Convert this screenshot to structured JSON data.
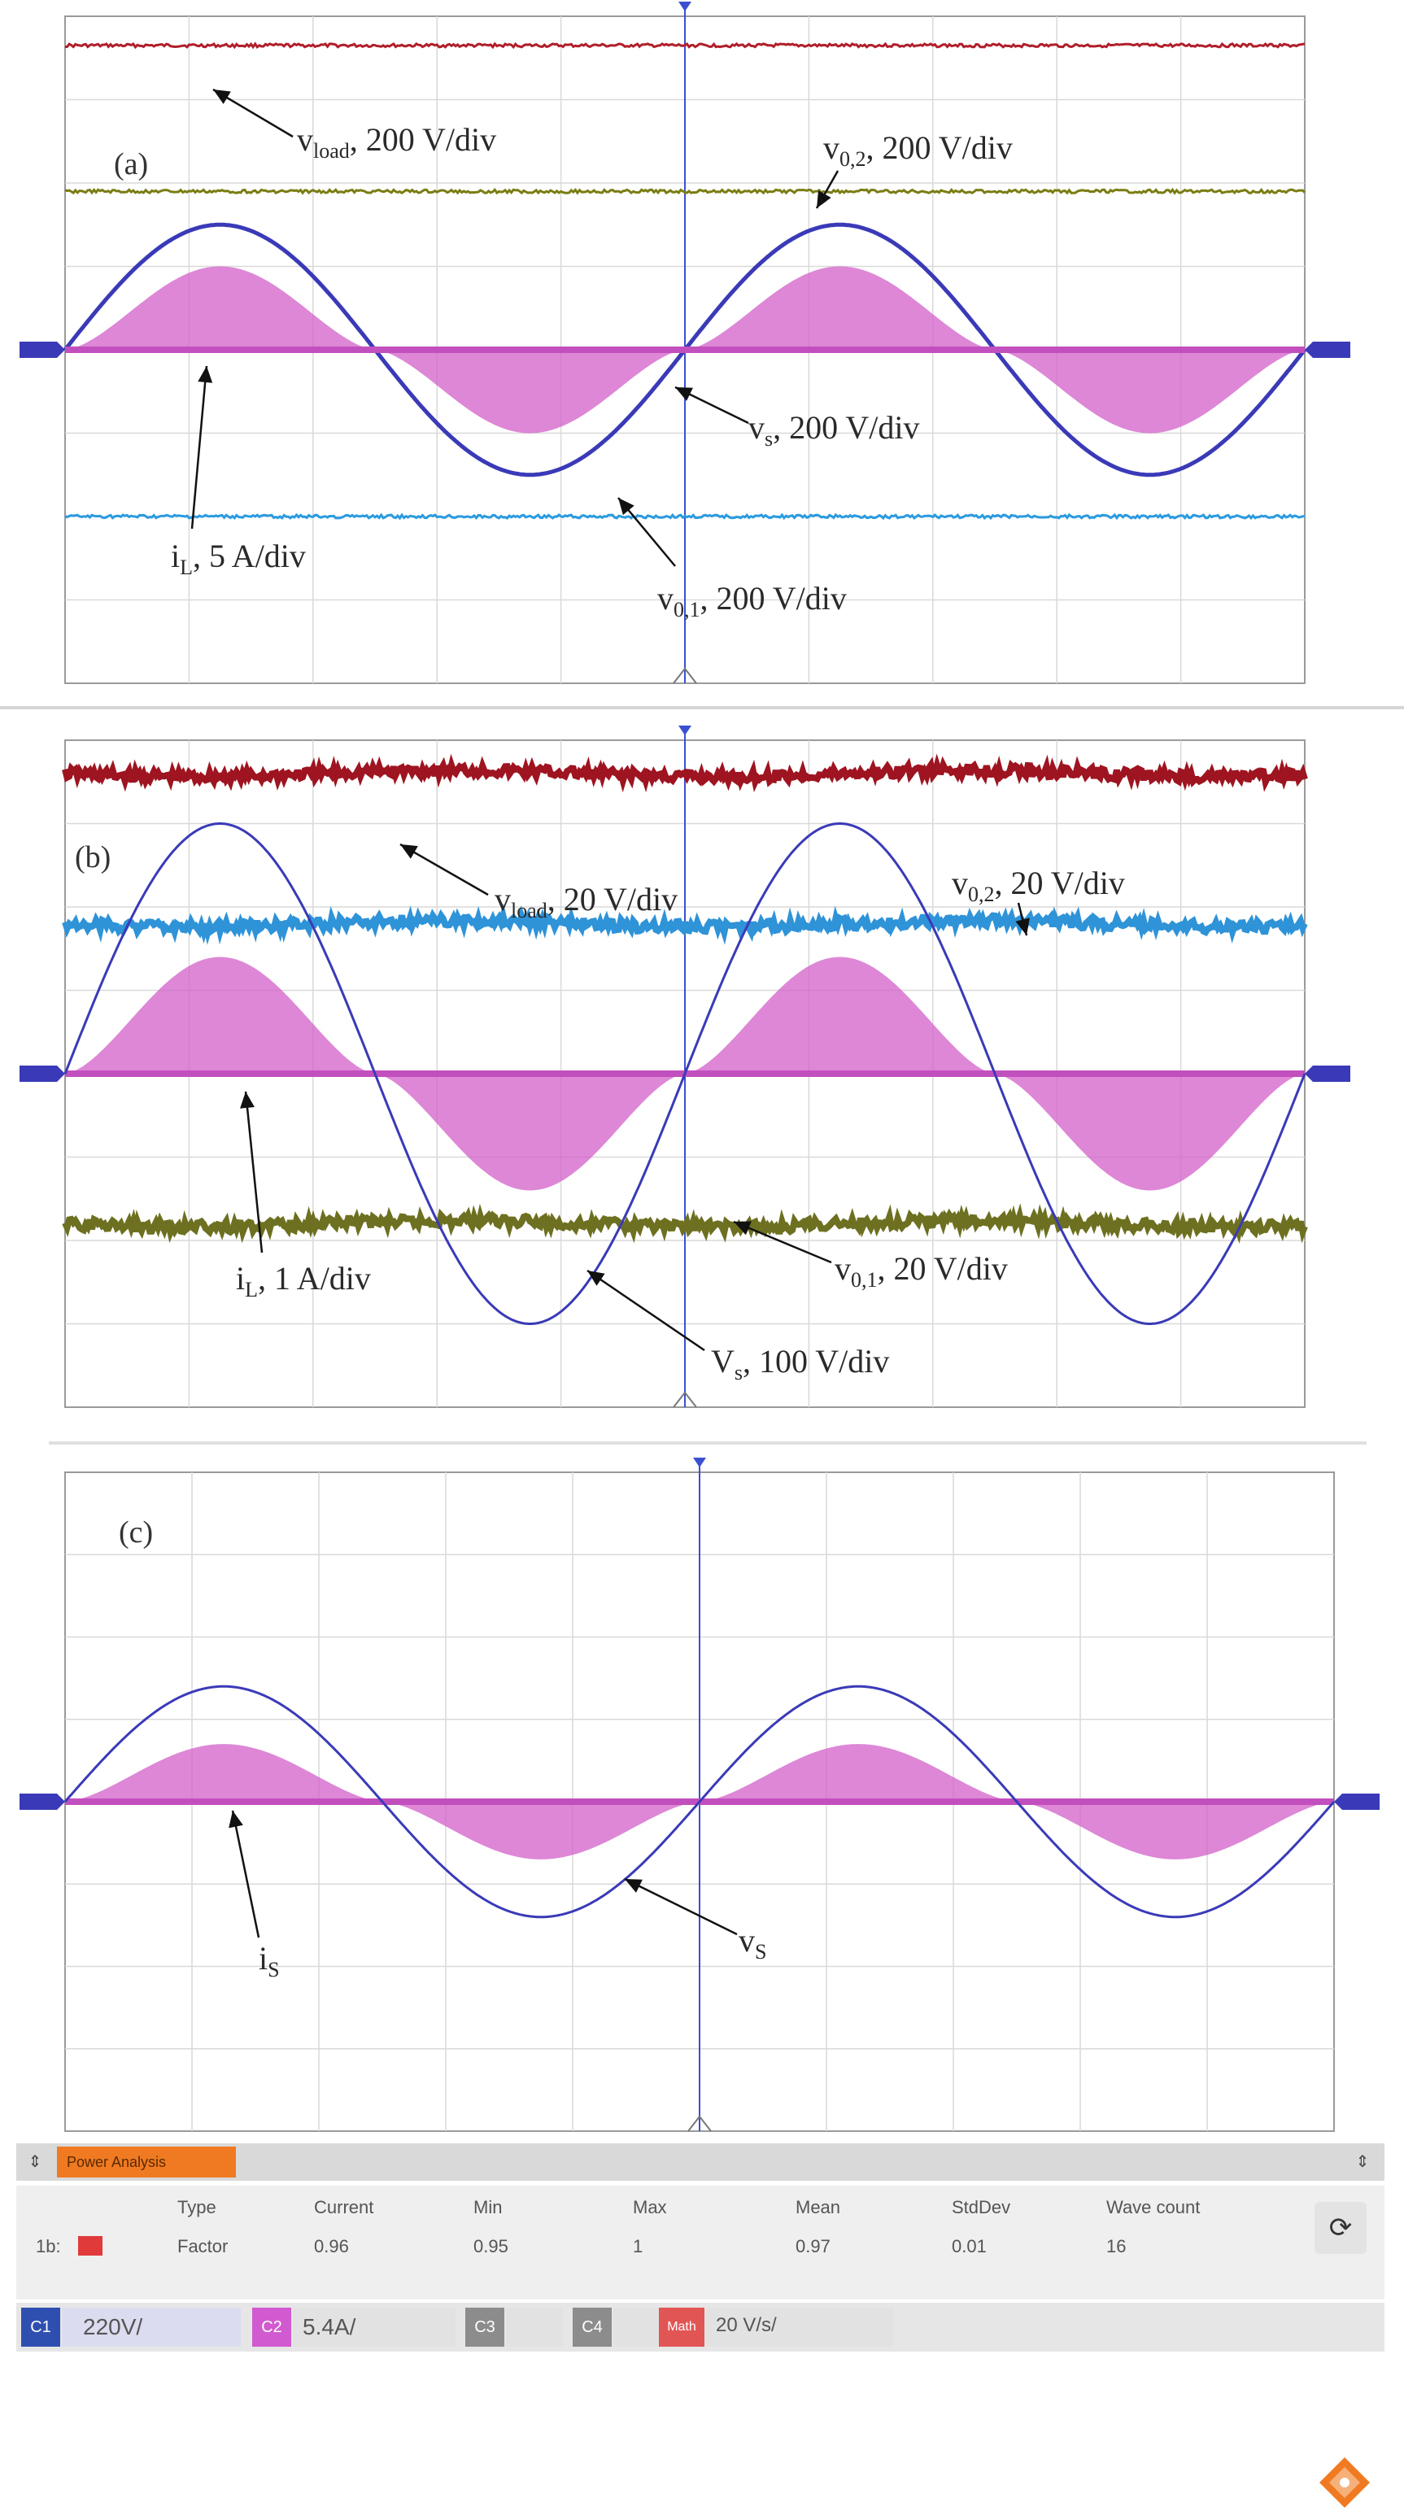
{
  "panels": [
    {
      "id": "a",
      "label": "(a)",
      "annotations": [
        {
          "text": "v",
          "sub": "load",
          "rest": ", 200 V/div"
        },
        {
          "text": "v",
          "sub": "0,2",
          "rest": ", 200 V/div"
        },
        {
          "text": "v",
          "sub": "s",
          "rest": ", 200 V/div"
        },
        {
          "text": "i",
          "sub": "L",
          "rest": ", 5 A/div"
        },
        {
          "text": "v",
          "sub": "0,1",
          "rest": ", 200 V/div"
        }
      ]
    },
    {
      "id": "b",
      "label": "(b)",
      "annotations": [
        {
          "text": "v",
          "sub": "load",
          "rest": ", 20 V/div"
        },
        {
          "text": "v",
          "sub": "0,2",
          "rest": ", 20 V/div"
        },
        {
          "text": "i",
          "sub": "L",
          "rest": ", 1 A/div"
        },
        {
          "text": "v",
          "sub": "0,1",
          "rest": ", 20 V/div"
        },
        {
          "text": "V",
          "sub": "s",
          "rest": ", 100 V/div"
        }
      ]
    },
    {
      "id": "c",
      "label": "(c)",
      "annotations": [
        {
          "text": "i",
          "sub": "S",
          "rest": ""
        },
        {
          "text": "v",
          "sub": "S",
          "rest": ""
        }
      ]
    }
  ],
  "power_analysis": {
    "tab_label": "Power Analysis",
    "columns": [
      "Type",
      "Current",
      "Min",
      "Max",
      "Mean",
      "StdDev",
      "Wave count"
    ],
    "row_label": "1b:",
    "row": [
      "Factor",
      "0.96",
      "0.95",
      "1",
      "0.97",
      "0.01",
      "16"
    ]
  },
  "channel_bar": {
    "channels": [
      {
        "tag": "C1",
        "value": "220V/",
        "color": "#2f4fb0"
      },
      {
        "tag": "C2",
        "value": "5.4A/",
        "color": "#d25ad0"
      },
      {
        "tag": "C3",
        "value": "",
        "color": "#8c8c8c"
      },
      {
        "tag": "C4",
        "value": "",
        "color": "#8c8c8c"
      },
      {
        "tag": "Math",
        "value": "20 V/s/",
        "color": "#e25555"
      }
    ]
  },
  "chart_data": [
    {
      "type": "line",
      "panel": "a",
      "title": "",
      "series": [
        {
          "name": "vload, 200 V/div",
          "color": "#b01e2a",
          "shape": "dc",
          "level_div": 3.65
        },
        {
          "name": "v0,2, 200 V/div",
          "color": "#7a7d12",
          "shape": "dc",
          "level_div": 1.9
        },
        {
          "name": "vs, 200 V/div",
          "color": "#3a3ab8",
          "shape": "sine",
          "amplitude_div": 1.5,
          "cycles": 2
        },
        {
          "name": "iL, 5 A/div",
          "color": "#d15fc8",
          "shape": "rectified-envelope",
          "amplitude_div": 1.0,
          "cycles": 2
        },
        {
          "name": "v0,1, 200 V/div",
          "color": "#2a9be0",
          "shape": "dc",
          "level_div": -2.0
        }
      ],
      "grid": true,
      "divisions": {
        "x": 10,
        "y": 8
      }
    },
    {
      "type": "line",
      "panel": "b",
      "title": "",
      "series": [
        {
          "name": "vload, 20 V/div",
          "color": "#9e1420",
          "shape": "dc",
          "level_div": 3.6
        },
        {
          "name": "v0,2, 20 V/div",
          "color": "#2f93d8",
          "shape": "dc",
          "level_div": 1.8
        },
        {
          "name": "iL, 1 A/div",
          "color": "#d15fc8",
          "shape": "rectified-envelope",
          "amplitude_div": 1.4,
          "cycles": 2
        },
        {
          "name": "v0,1, 20 V/div",
          "color": "#6d7020",
          "shape": "dc",
          "level_div": -1.8
        },
        {
          "name": "Vs, 100 V/div",
          "color": "#3a3ab8",
          "shape": "sine",
          "amplitude_div": 3.0,
          "cycles": 2
        }
      ],
      "grid": true,
      "divisions": {
        "x": 10,
        "y": 8
      }
    },
    {
      "type": "line",
      "panel": "c",
      "title": "",
      "series": [
        {
          "name": "iS",
          "color": "#d15fc8",
          "shape": "rectified-envelope",
          "amplitude_div": 0.7,
          "cycles": 2
        },
        {
          "name": "vS",
          "color": "#3a3ab8",
          "shape": "sine",
          "amplitude_div": 1.4,
          "cycles": 2
        }
      ],
      "grid": true,
      "divisions": {
        "x": 10,
        "y": 8
      }
    }
  ]
}
